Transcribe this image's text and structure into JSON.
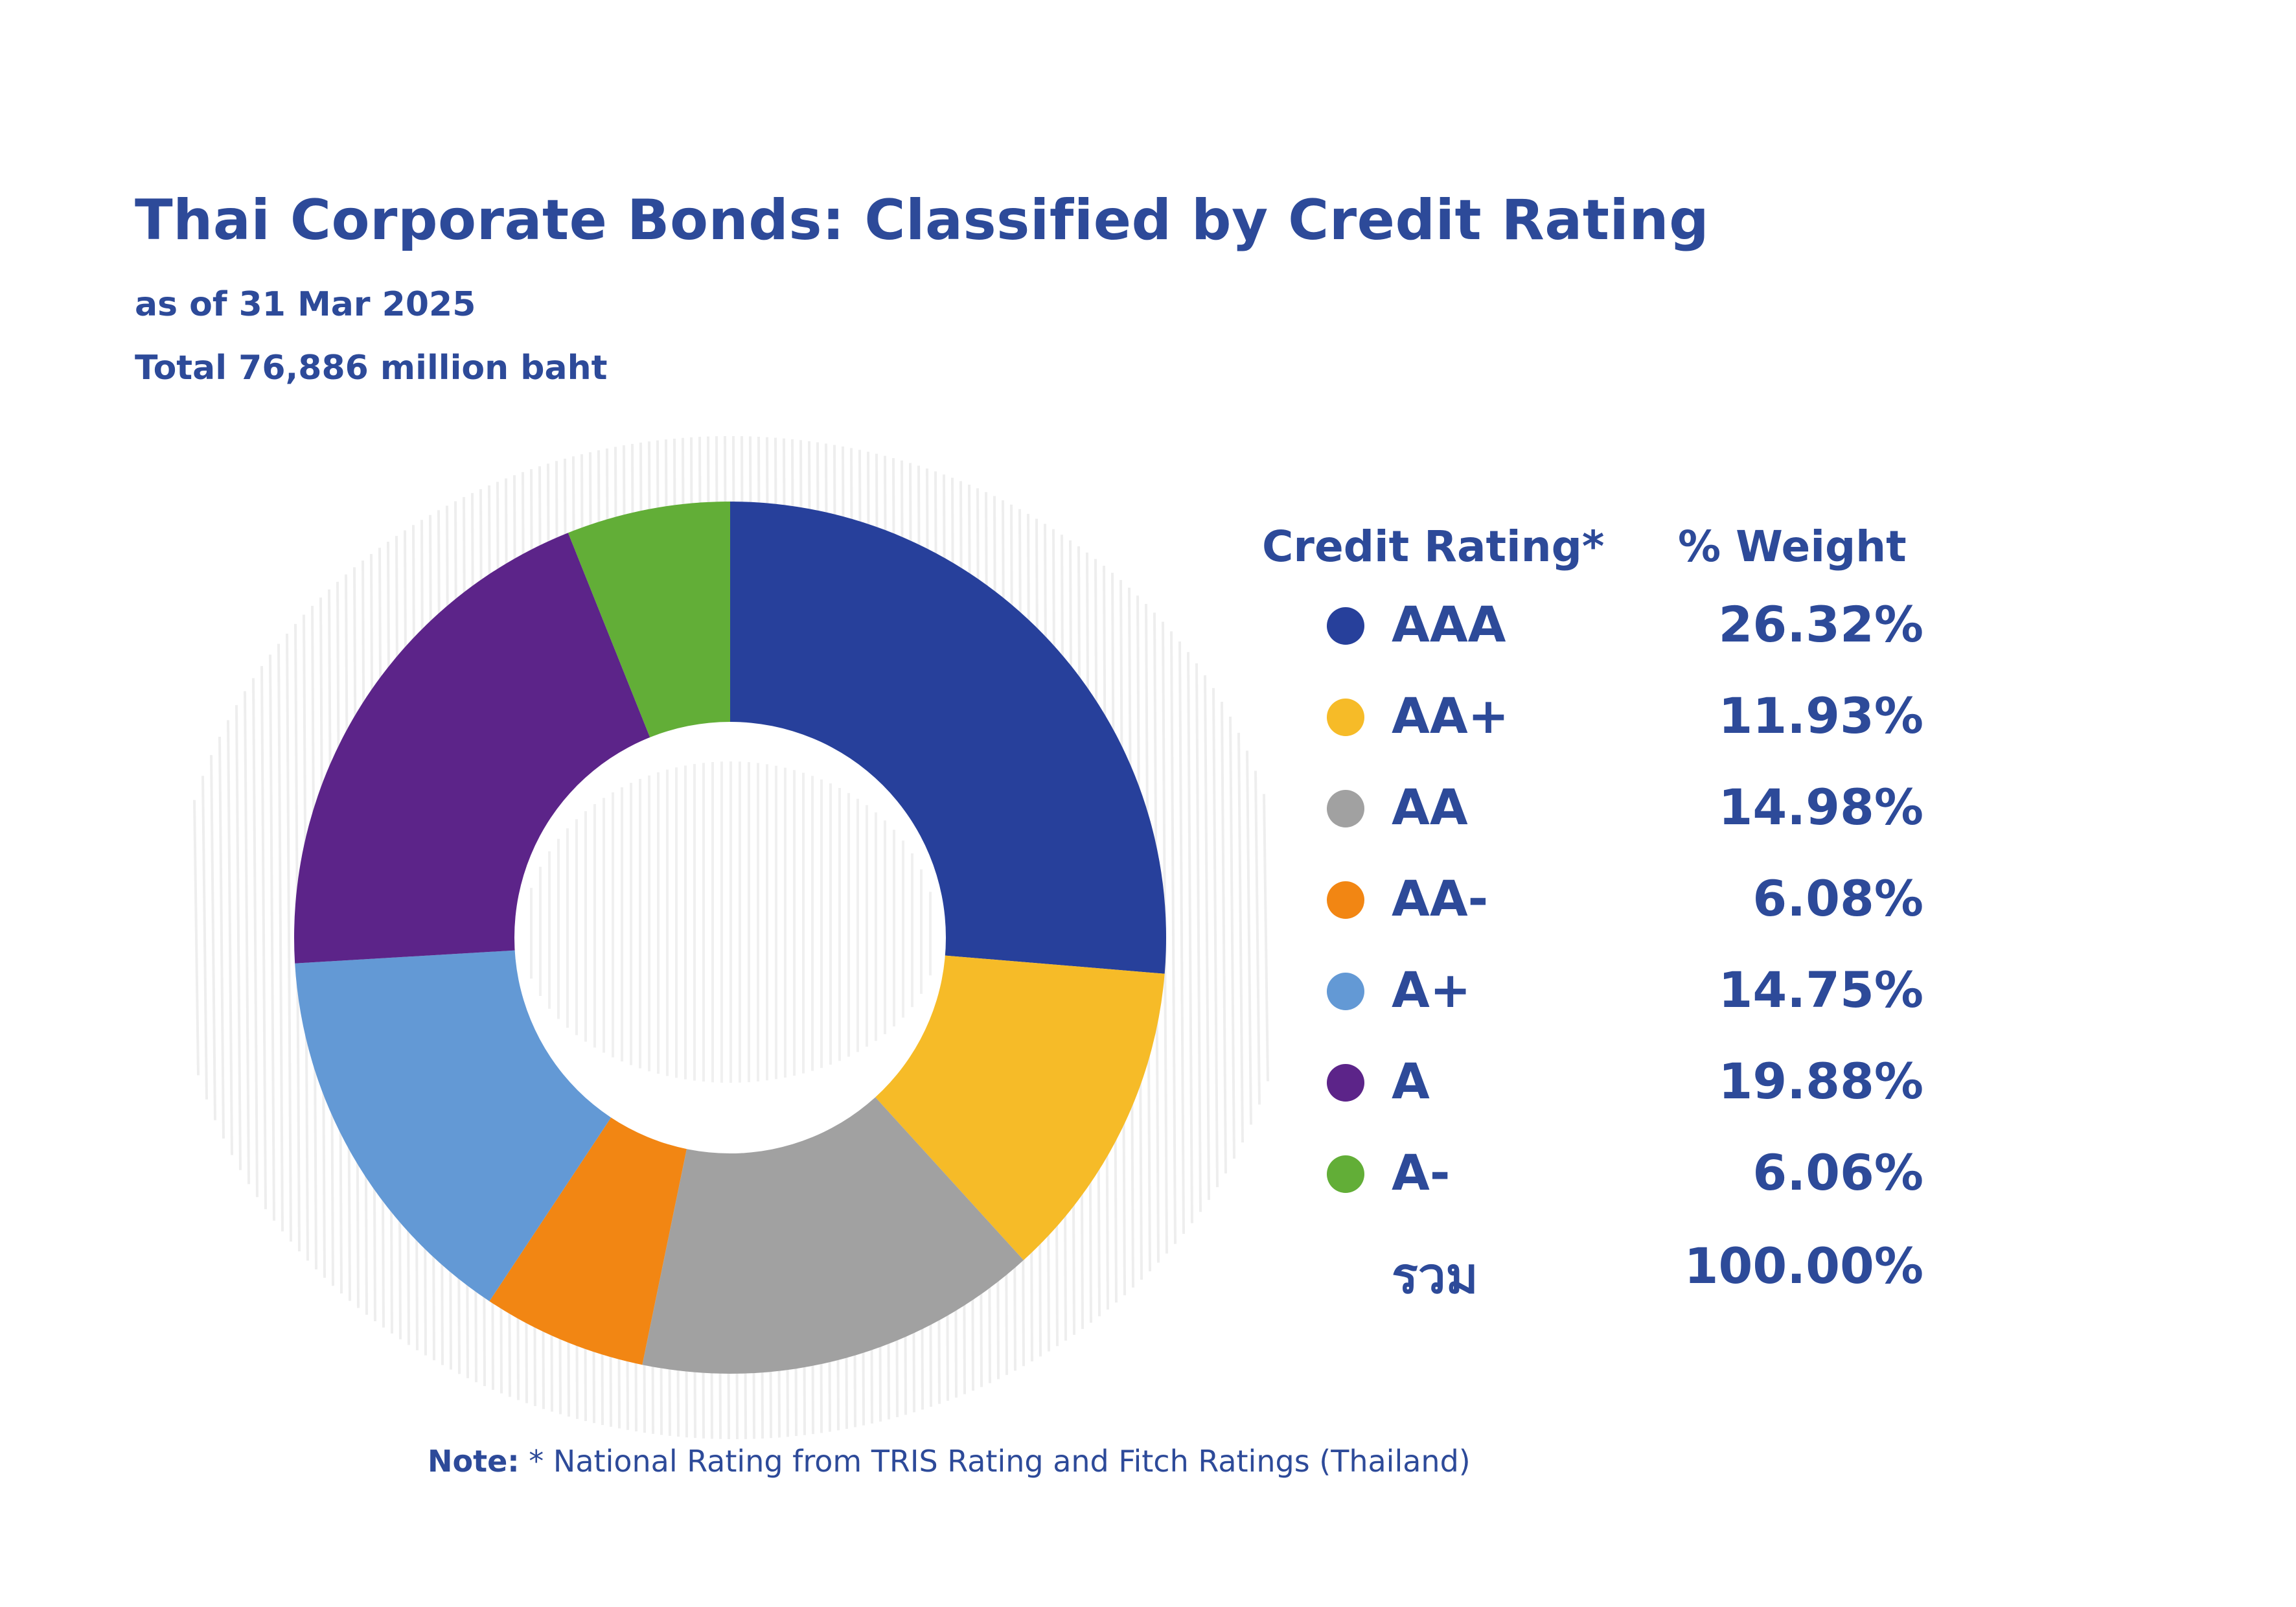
{
  "header": {
    "title": "Thai Corporate Bonds: Classified by Credit Rating",
    "as_of": "as of  31 Mar 2025",
    "total": "Total  76,886 million baht"
  },
  "table": {
    "col_rating": "Credit Rating*",
    "col_weight": "% Weight",
    "total_label": "รวม",
    "total_value": "100.00%"
  },
  "note": {
    "prefix": "Note:",
    "text": " * National Rating from TRIS Rating and Fitch Ratings (Thailand)"
  },
  "chart_data": {
    "type": "pie",
    "donut": true,
    "categories": [
      "AAA",
      "AA+",
      "AA",
      "AA-",
      "A+",
      "A",
      "A-"
    ],
    "values": [
      26.32,
      11.93,
      14.98,
      6.08,
      14.75,
      19.88,
      6.06
    ],
    "value_labels": [
      "26.32%",
      "11.93%",
      "14.98%",
      "6.08%",
      "14.75%",
      "19.88%",
      "6.06%"
    ],
    "colors": [
      "#27409b",
      "#f6bb28",
      "#a1a1a1",
      "#f28613",
      "#6399d5",
      "#5c2489",
      "#62ae37"
    ],
    "legend_position": "right"
  }
}
